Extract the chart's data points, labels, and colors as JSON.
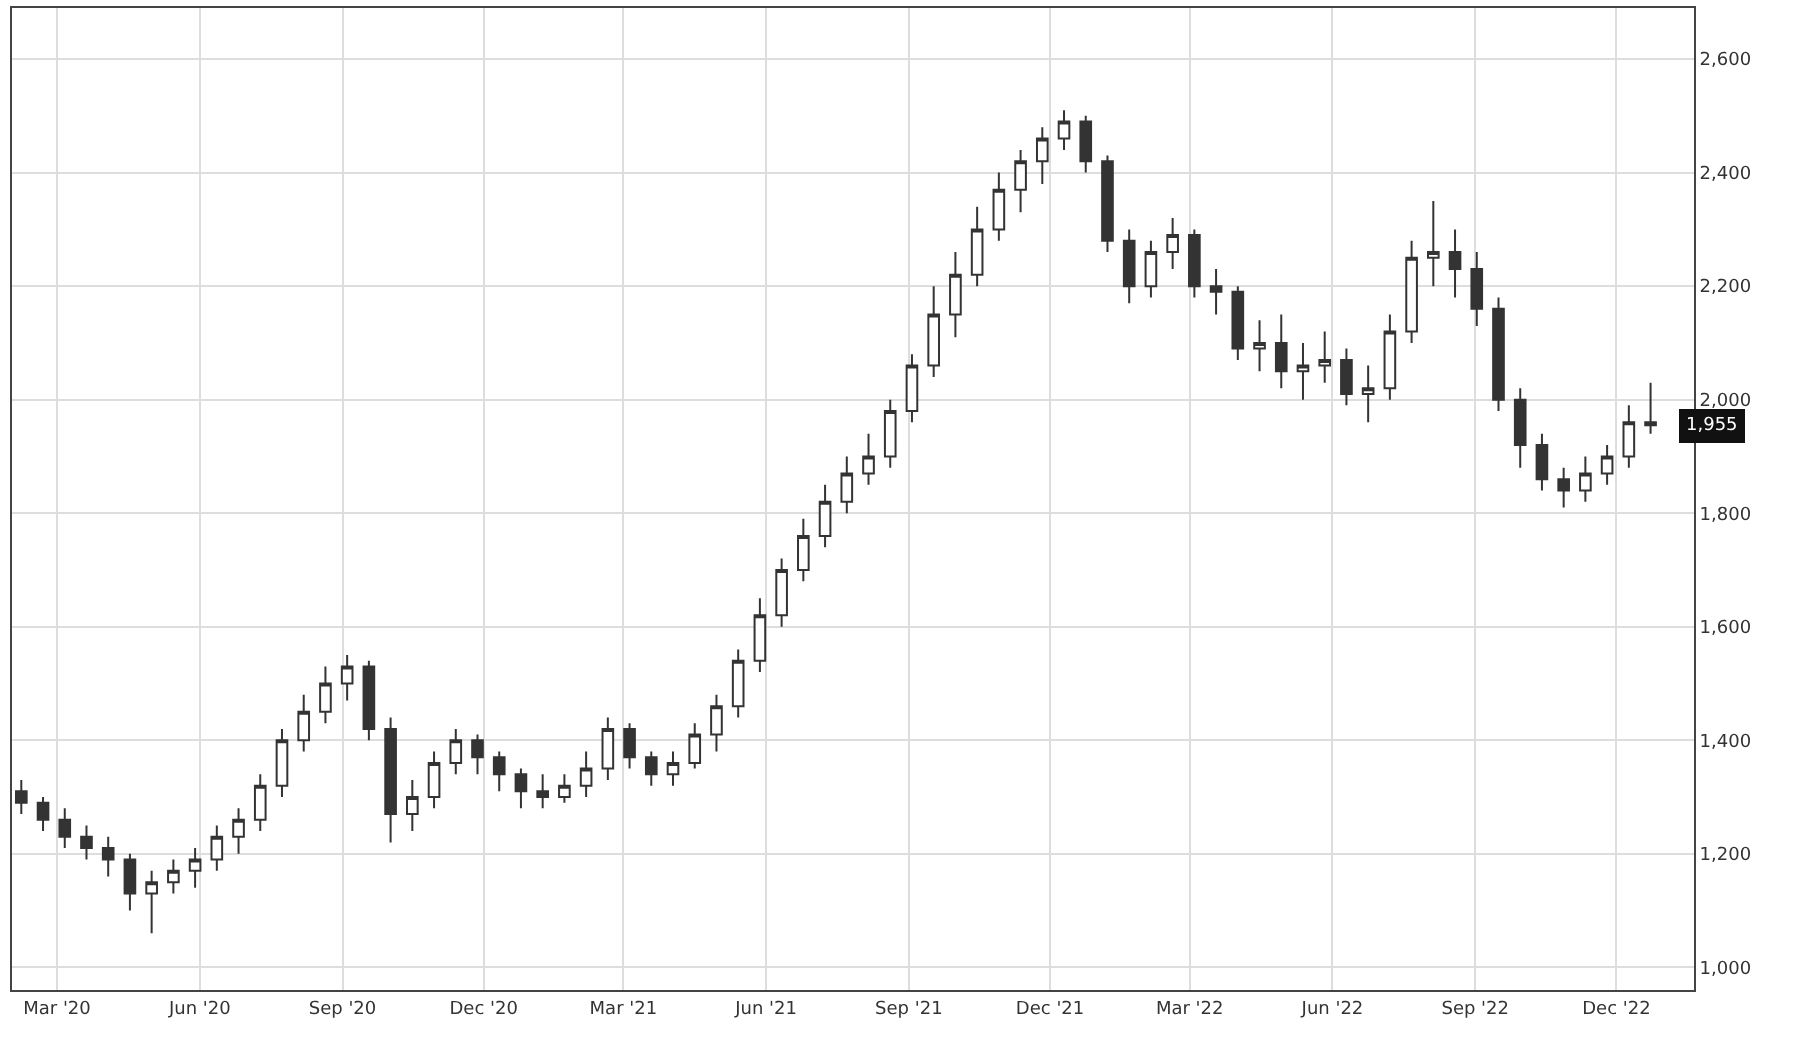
{
  "chart_data": {
    "type": "candlestick",
    "x": [
      "2020-02-07",
      "2020-02-21",
      "2020-03-06",
      "2020-03-20",
      "2020-04-03",
      "2020-04-17",
      "2020-05-01",
      "2020-05-15",
      "2020-05-29",
      "2020-06-12",
      "2020-06-26",
      "2020-07-10",
      "2020-07-24",
      "2020-08-07",
      "2020-08-21",
      "2020-09-04",
      "2020-09-18",
      "2020-10-02",
      "2020-10-16",
      "2020-10-30",
      "2020-11-13",
      "2020-11-27",
      "2020-12-11",
      "2020-12-25",
      "2021-01-08",
      "2021-01-22",
      "2021-02-05",
      "2021-02-19",
      "2021-03-05",
      "2021-03-19",
      "2021-04-02",
      "2021-04-16",
      "2021-04-30",
      "2021-05-14",
      "2021-05-28",
      "2021-06-11",
      "2021-06-25",
      "2021-07-09",
      "2021-07-23",
      "2021-08-06",
      "2021-08-20",
      "2021-09-03",
      "2021-09-17",
      "2021-10-01",
      "2021-10-15",
      "2021-10-29",
      "2021-11-12",
      "2021-11-26",
      "2021-12-10",
      "2021-12-24",
      "2022-01-07",
      "2022-01-21",
      "2022-02-04",
      "2022-02-18",
      "2022-03-04",
      "2022-03-18",
      "2022-04-01",
      "2022-04-15",
      "2022-04-29",
      "2022-05-13",
      "2022-05-27",
      "2022-06-10",
      "2022-06-24",
      "2022-07-08",
      "2022-07-22",
      "2022-08-05",
      "2022-08-19",
      "2022-09-02",
      "2022-09-16",
      "2022-09-30",
      "2022-10-14",
      "2022-10-28",
      "2022-11-11",
      "2022-11-25",
      "2022-12-09",
      "2022-12-23"
    ],
    "ohlc": [
      [
        1310,
        1330,
        1270,
        1290
      ],
      [
        1290,
        1300,
        1240,
        1260
      ],
      [
        1260,
        1280,
        1210,
        1230
      ],
      [
        1230,
        1250,
        1190,
        1210
      ],
      [
        1210,
        1230,
        1160,
        1190
      ],
      [
        1190,
        1200,
        1100,
        1130
      ],
      [
        1130,
        1170,
        1060,
        1150
      ],
      [
        1150,
        1190,
        1130,
        1170
      ],
      [
        1170,
        1210,
        1140,
        1190
      ],
      [
        1190,
        1250,
        1170,
        1230
      ],
      [
        1230,
        1280,
        1200,
        1260
      ],
      [
        1260,
        1340,
        1240,
        1320
      ],
      [
        1320,
        1420,
        1300,
        1400
      ],
      [
        1400,
        1480,
        1380,
        1450
      ],
      [
        1450,
        1530,
        1430,
        1500
      ],
      [
        1500,
        1550,
        1470,
        1530
      ],
      [
        1530,
        1540,
        1400,
        1420
      ],
      [
        1420,
        1440,
        1220,
        1270
      ],
      [
        1270,
        1330,
        1240,
        1300
      ],
      [
        1300,
        1380,
        1280,
        1360
      ],
      [
        1360,
        1420,
        1340,
        1400
      ],
      [
        1400,
        1410,
        1340,
        1370
      ],
      [
        1370,
        1380,
        1310,
        1340
      ],
      [
        1340,
        1350,
        1280,
        1310
      ],
      [
        1310,
        1340,
        1280,
        1300
      ],
      [
        1300,
        1340,
        1290,
        1320
      ],
      [
        1320,
        1380,
        1300,
        1350
      ],
      [
        1350,
        1440,
        1330,
        1420
      ],
      [
        1420,
        1430,
        1350,
        1370
      ],
      [
        1370,
        1380,
        1320,
        1340
      ],
      [
        1340,
        1380,
        1320,
        1360
      ],
      [
        1360,
        1430,
        1350,
        1410
      ],
      [
        1410,
        1480,
        1380,
        1460
      ],
      [
        1460,
        1560,
        1440,
        1540
      ],
      [
        1540,
        1650,
        1520,
        1620
      ],
      [
        1620,
        1720,
        1600,
        1700
      ],
      [
        1700,
        1790,
        1680,
        1760
      ],
      [
        1760,
        1850,
        1740,
        1820
      ],
      [
        1820,
        1900,
        1800,
        1870
      ],
      [
        1870,
        1940,
        1850,
        1900
      ],
      [
        1900,
        2000,
        1880,
        1980
      ],
      [
        1980,
        2080,
        1960,
        2060
      ],
      [
        2060,
        2200,
        2040,
        2150
      ],
      [
        2150,
        2260,
        2110,
        2220
      ],
      [
        2220,
        2340,
        2200,
        2300
      ],
      [
        2300,
        2400,
        2280,
        2370
      ],
      [
        2370,
        2440,
        2330,
        2420
      ],
      [
        2420,
        2480,
        2380,
        2460
      ],
      [
        2460,
        2510,
        2440,
        2490
      ],
      [
        2490,
        2500,
        2400,
        2420
      ],
      [
        2420,
        2430,
        2260,
        2280
      ],
      [
        2280,
        2300,
        2170,
        2200
      ],
      [
        2200,
        2280,
        2180,
        2260
      ],
      [
        2260,
        2320,
        2230,
        2290
      ],
      [
        2290,
        2300,
        2180,
        2200
      ],
      [
        2200,
        2230,
        2150,
        2190
      ],
      [
        2190,
        2200,
        2070,
        2090
      ],
      [
        2090,
        2140,
        2050,
        2100
      ],
      [
        2100,
        2150,
        2020,
        2050
      ],
      [
        2050,
        2100,
        2000,
        2060
      ],
      [
        2060,
        2120,
        2030,
        2070
      ],
      [
        2070,
        2090,
        1990,
        2010
      ],
      [
        2010,
        2060,
        1960,
        2020
      ],
      [
        2020,
        2150,
        2000,
        2120
      ],
      [
        2120,
        2280,
        2100,
        2250
      ],
      [
        2250,
        2350,
        2200,
        2260
      ],
      [
        2260,
        2300,
        2180,
        2230
      ],
      [
        2230,
        2260,
        2130,
        2160
      ],
      [
        2160,
        2180,
        1980,
        2000
      ],
      [
        2000,
        2020,
        1880,
        1920
      ],
      [
        1920,
        1940,
        1840,
        1860
      ],
      [
        1860,
        1880,
        1810,
        1840
      ],
      [
        1840,
        1900,
        1820,
        1870
      ],
      [
        1870,
        1920,
        1850,
        1900
      ],
      [
        1900,
        1990,
        1880,
        1960
      ],
      [
        1960,
        2030,
        1940,
        1955
      ]
    ],
    "color": "#333333",
    "xlim": [
      "2020-02-01",
      "2023-01-20"
    ],
    "xticks": [
      {
        "value": "2020-03-01",
        "label": "Mar '20"
      },
      {
        "value": "2020-06-01",
        "label": "Jun '20"
      },
      {
        "value": "2020-09-01",
        "label": "Sep '20"
      },
      {
        "value": "2020-12-01",
        "label": "Dec '20"
      },
      {
        "value": "2021-03-01",
        "label": "Mar '21"
      },
      {
        "value": "2021-06-01",
        "label": "Jun '21"
      },
      {
        "value": "2021-09-01",
        "label": "Sep '21"
      },
      {
        "value": "2021-12-01",
        "label": "Dec '21"
      },
      {
        "value": "2022-03-01",
        "label": "Mar '22"
      },
      {
        "value": "2022-06-01",
        "label": "Jun '22"
      },
      {
        "value": "2022-09-01",
        "label": "Sep '22"
      },
      {
        "value": "2022-12-01",
        "label": "Dec '22"
      }
    ],
    "ylim": [
      960,
      2690
    ],
    "yticks": [
      {
        "value": 1000,
        "label": "1,000"
      },
      {
        "value": 1200,
        "label": "1,200"
      },
      {
        "value": 1400,
        "label": "1,400"
      },
      {
        "value": 1600,
        "label": "1,600"
      },
      {
        "value": 1800,
        "label": "1,800"
      },
      {
        "value": 2000,
        "label": "2,000"
      },
      {
        "value": 2200,
        "label": "2,200"
      },
      {
        "value": 2400,
        "label": "2,400"
      },
      {
        "value": 2600,
        "label": "2,600"
      }
    ],
    "grid": true,
    "annotations": [
      {
        "text": "1,955",
        "x": "2022-12-23",
        "y": 1955
      }
    ]
  }
}
